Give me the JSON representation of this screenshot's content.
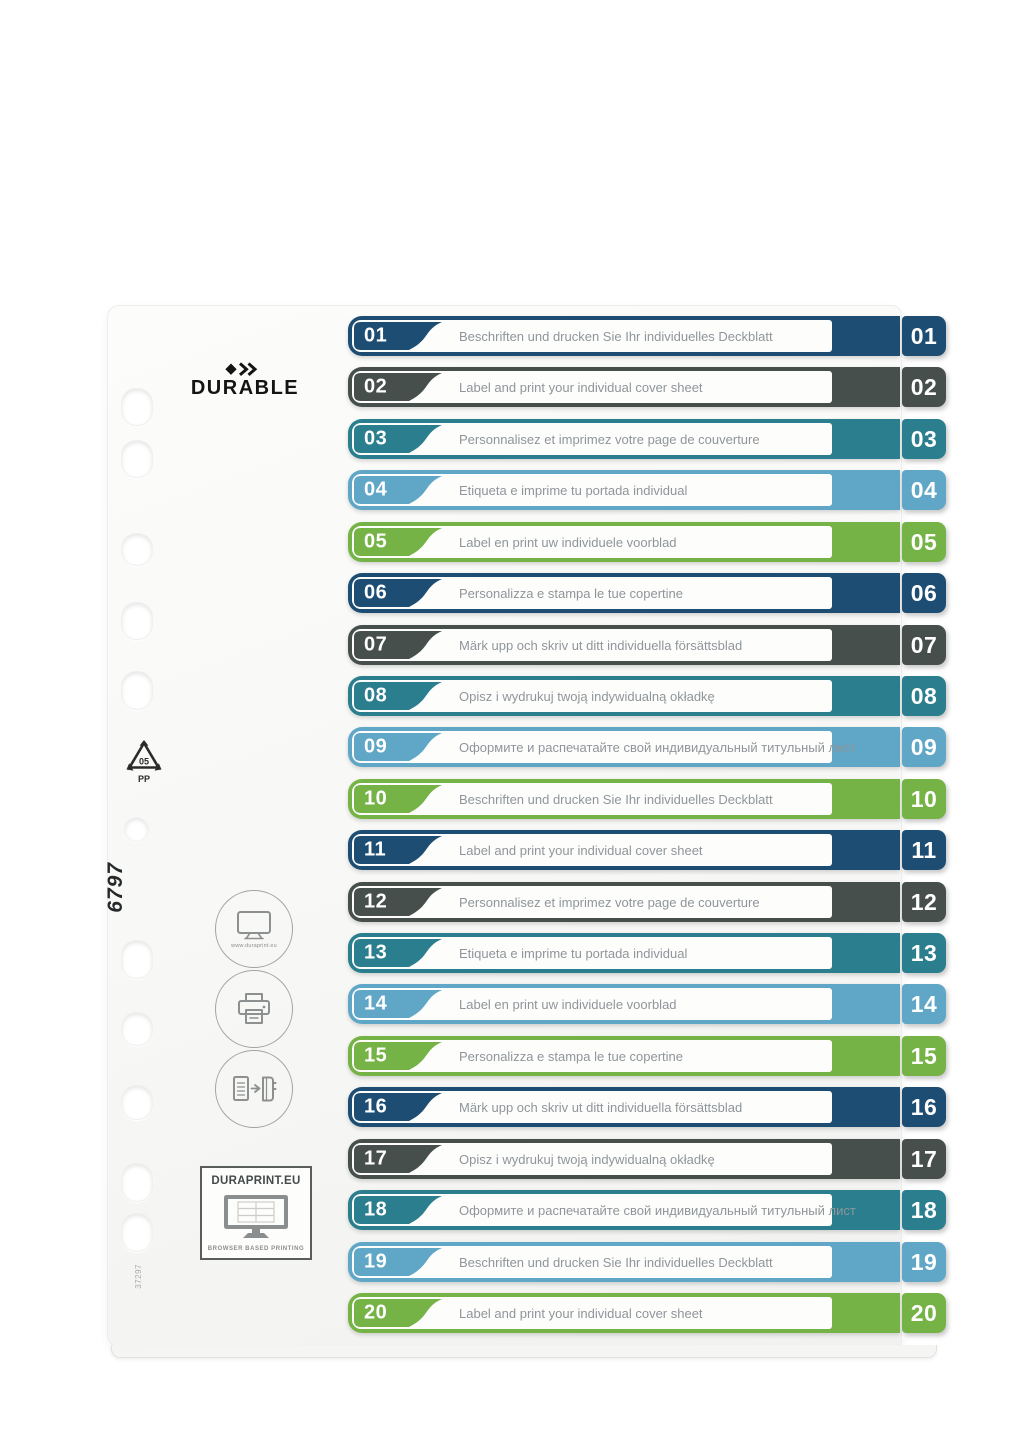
{
  "brand": "DURABLE",
  "sheet_codes": {
    "product_number": "6797",
    "print_code": "37297",
    "recycle_code": "05",
    "recycle_material": "PP"
  },
  "duraprint_box": {
    "title": "DURAPRINT.EU",
    "subtitle": "BROWSER BASED PRINTING",
    "url": "www.duraprint.eu"
  },
  "icon_names": [
    "monitor-icon",
    "printer-icon",
    "sheet-to-divider-icon"
  ],
  "colors": {
    "navy": "#1E4D73",
    "slate": "#474F4D",
    "teal": "#2A7E8E",
    "lightblue": "#5FA6C7",
    "green": "#76B346"
  },
  "rows": [
    {
      "number": "01",
      "color": "navy",
      "text": "Beschriften und drucken Sie Ihr individuelles Deckblatt"
    },
    {
      "number": "02",
      "color": "slate",
      "text": "Label and print your individual cover sheet"
    },
    {
      "number": "03",
      "color": "teal",
      "text": "Personnalisez et imprimez votre page de couverture"
    },
    {
      "number": "04",
      "color": "lightblue",
      "text": "Etiqueta e imprime tu portada individual"
    },
    {
      "number": "05",
      "color": "green",
      "text": "Label en print uw individuele voorblad"
    },
    {
      "number": "06",
      "color": "navy",
      "text": "Personalizza e stampa le tue copertine"
    },
    {
      "number": "07",
      "color": "slate",
      "text": "Märk upp och skriv ut ditt individuella försättsblad"
    },
    {
      "number": "08",
      "color": "teal",
      "text": "Opisz i wydrukuj twoją indywidualną okładkę"
    },
    {
      "number": "09",
      "color": "lightblue",
      "text": "Оформите и распечатайте свой индивидуальный титульный лист"
    },
    {
      "number": "10",
      "color": "green",
      "text": "Beschriften und drucken Sie Ihr individuelles Deckblatt"
    },
    {
      "number": "11",
      "color": "navy",
      "text": "Label and print your individual cover sheet"
    },
    {
      "number": "12",
      "color": "slate",
      "text": "Personnalisez et imprimez votre page de couverture"
    },
    {
      "number": "13",
      "color": "teal",
      "text": "Etiqueta e imprime tu portada individual"
    },
    {
      "number": "14",
      "color": "lightblue",
      "text": "Label en print uw individuele voorblad"
    },
    {
      "number": "15",
      "color": "green",
      "text": "Personalizza e stampa le tue copertine"
    },
    {
      "number": "16",
      "color": "navy",
      "text": "Märk upp och skriv ut ditt individuella försättsblad"
    },
    {
      "number": "17",
      "color": "slate",
      "text": "Opisz i wydrukuj twoją indywidualną okładkę"
    },
    {
      "number": "18",
      "color": "teal",
      "text": "Оформите и распечатайте свой индивидуальный титульный лист"
    },
    {
      "number": "19",
      "color": "lightblue",
      "text": "Beschriften und drucken Sie Ihr individuelles Deckblatt"
    },
    {
      "number": "20",
      "color": "green",
      "text": "Label and print your individual cover sheet"
    }
  ]
}
